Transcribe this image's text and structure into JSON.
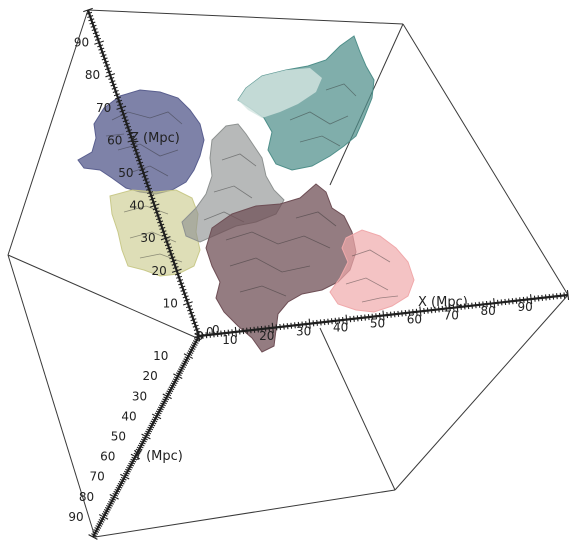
{
  "axes": {
    "x": {
      "title": "X (Mpc)",
      "ticks": [
        "10",
        "20",
        "30",
        "40",
        "50",
        "60",
        "70",
        "80",
        "90"
      ]
    },
    "y": {
      "title": "Y (Mpc)",
      "ticks": [
        "10",
        "20",
        "30",
        "40",
        "50",
        "60",
        "70",
        "80",
        "90"
      ]
    },
    "z": {
      "title": "Z (Mpc)",
      "ticks": [
        "10",
        "20",
        "30",
        "40",
        "50",
        "60",
        "70",
        "80",
        "90"
      ]
    },
    "origin_labels": [
      "0",
      "0",
      "0"
    ]
  },
  "structures": [
    {
      "id": "navy",
      "color": "#5a5f8f"
    },
    {
      "id": "olive",
      "color": "#c9c98a"
    },
    {
      "id": "teal",
      "color": "#4f8f8a"
    },
    {
      "id": "gray",
      "color": "#8e9291"
    },
    {
      "id": "mauve",
      "color": "#6e4e55"
    },
    {
      "id": "pink",
      "color": "#f0a9ab"
    }
  ]
}
